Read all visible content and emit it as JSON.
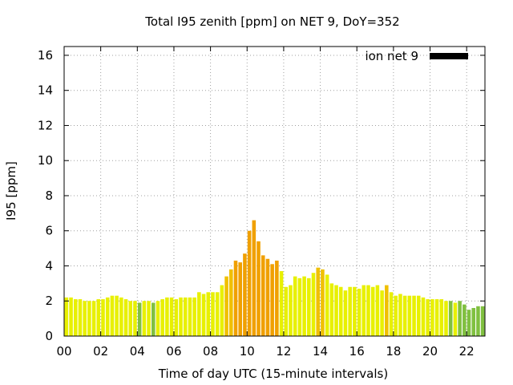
{
  "chart_data": {
    "type": "bar",
    "title": "Total I95 zenith [ppm] on NET 9, DoY=352",
    "xlabel": "Time of day UTC (15-minute intervals)",
    "ylabel": "I95 [ppm]",
    "xlim": [
      0,
      23
    ],
    "ylim": [
      0,
      16.5
    ],
    "grid": true,
    "legend_position": "top-right",
    "x_ticks": [
      "00",
      "02",
      "04",
      "06",
      "08",
      "10",
      "12",
      "14",
      "16",
      "18",
      "20",
      "22"
    ],
    "x_tick_values": [
      0,
      2,
      4,
      6,
      8,
      10,
      12,
      14,
      16,
      18,
      20,
      22
    ],
    "y_ticks": [
      "0",
      "2",
      "4",
      "6",
      "8",
      "10",
      "12",
      "14",
      "16"
    ],
    "y_tick_values": [
      0,
      2,
      4,
      6,
      8,
      10,
      12,
      14,
      16
    ],
    "bar_width_hours": 0.2,
    "colors": {
      "green": "#80c040",
      "yellow": "#e8f000",
      "gold": "#f0c000",
      "orange": "#f0a000",
      "legend": "#000000"
    },
    "series": [
      {
        "name": "ion net 9",
        "x": [
          0.125,
          0.375,
          0.625,
          0.875,
          1.125,
          1.375,
          1.625,
          1.875,
          2.125,
          2.375,
          2.625,
          2.875,
          3.125,
          3.375,
          3.625,
          3.875,
          4.125,
          4.375,
          4.625,
          4.875,
          5.125,
          5.375,
          5.625,
          5.875,
          6.125,
          6.375,
          6.625,
          6.875,
          7.125,
          7.375,
          7.625,
          7.875,
          8.125,
          8.375,
          8.625,
          8.875,
          9.125,
          9.375,
          9.625,
          9.875,
          10.125,
          10.375,
          10.625,
          10.875,
          11.125,
          11.375,
          11.625,
          11.875,
          12.125,
          12.375,
          12.625,
          12.875,
          13.125,
          13.375,
          13.625,
          13.875,
          14.125,
          14.375,
          14.625,
          14.875,
          15.125,
          15.375,
          15.625,
          15.875,
          16.125,
          16.375,
          16.625,
          16.875,
          17.125,
          17.375,
          17.625,
          17.875,
          18.125,
          18.375,
          18.625,
          18.875,
          19.125,
          19.375,
          19.625,
          19.875,
          20.125,
          20.375,
          20.625,
          20.875,
          21.125,
          21.375,
          21.625,
          21.875,
          22.125,
          22.375,
          22.625,
          22.875
        ],
        "values": [
          2.2,
          2.2,
          2.1,
          2.1,
          2.0,
          2.0,
          2.0,
          2.1,
          2.1,
          2.2,
          2.3,
          2.3,
          2.2,
          2.1,
          2.0,
          2.0,
          1.9,
          2.0,
          2.0,
          1.9,
          2.0,
          2.1,
          2.2,
          2.2,
          2.1,
          2.2,
          2.2,
          2.2,
          2.2,
          2.5,
          2.4,
          2.5,
          2.5,
          2.5,
          2.9,
          3.4,
          3.8,
          4.3,
          4.2,
          4.7,
          6.0,
          6.6,
          5.4,
          4.6,
          4.4,
          4.1,
          4.3,
          3.7,
          2.8,
          2.9,
          3.4,
          3.3,
          3.4,
          3.3,
          3.6,
          3.9,
          3.8,
          3.5,
          3.0,
          2.9,
          2.8,
          2.6,
          2.8,
          2.8,
          2.7,
          2.9,
          2.9,
          2.8,
          2.9,
          2.6,
          2.9,
          2.5,
          2.3,
          2.4,
          2.3,
          2.3,
          2.3,
          2.3,
          2.2,
          2.1,
          2.1,
          2.1,
          2.1,
          2.0,
          2.0,
          1.9,
          2.0,
          1.8,
          1.5,
          1.6,
          1.7,
          1.7
        ],
        "colors": [
          "yellow",
          "yellow",
          "yellow",
          "yellow",
          "yellow",
          "yellow",
          "yellow",
          "yellow",
          "yellow",
          "yellow",
          "yellow",
          "yellow",
          "yellow",
          "yellow",
          "yellow",
          "yellow",
          "green",
          "yellow",
          "yellow",
          "green",
          "yellow",
          "yellow",
          "yellow",
          "yellow",
          "yellow",
          "yellow",
          "yellow",
          "yellow",
          "yellow",
          "yellow",
          "yellow",
          "yellow",
          "yellow",
          "yellow",
          "yellow",
          "gold",
          "gold",
          "orange",
          "orange",
          "orange",
          "orange",
          "orange",
          "orange",
          "orange",
          "orange",
          "orange",
          "orange",
          "yellow",
          "yellow",
          "yellow",
          "yellow",
          "yellow",
          "yellow",
          "yellow",
          "yellow",
          "gold",
          "gold",
          "yellow",
          "yellow",
          "yellow",
          "yellow",
          "yellow",
          "yellow",
          "yellow",
          "yellow",
          "yellow",
          "yellow",
          "yellow",
          "yellow",
          "yellow",
          "gold",
          "yellow",
          "yellow",
          "yellow",
          "yellow",
          "yellow",
          "yellow",
          "yellow",
          "yellow",
          "yellow",
          "yellow",
          "yellow",
          "yellow",
          "yellow",
          "green",
          "yellow",
          "green",
          "green",
          "green",
          "green",
          "green",
          "green"
        ]
      }
    ]
  }
}
